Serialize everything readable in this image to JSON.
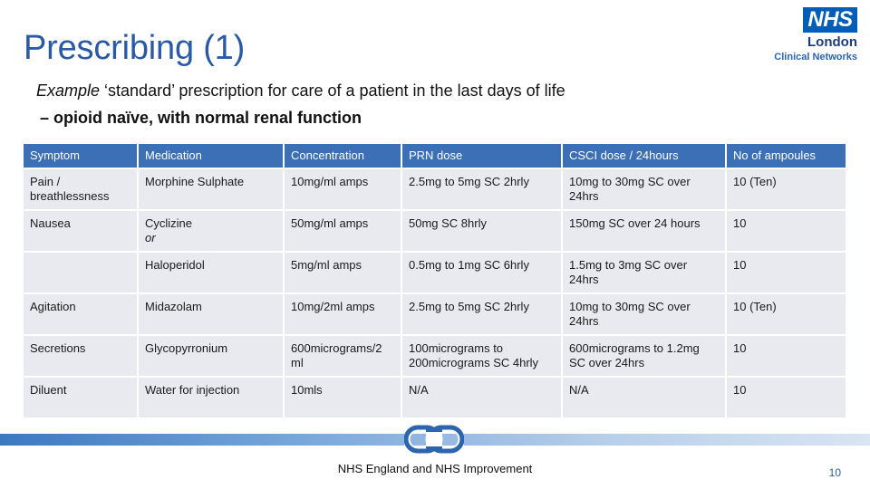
{
  "title": "Prescribing (1)",
  "logo": {
    "nhs": "NHS",
    "line1": "London",
    "line2": "Clinical Networks"
  },
  "subtitle": {
    "italic": "Example",
    "rest": " ‘standard’ prescription for care of a patient in the last days of life"
  },
  "subtitle2": "– opioid naïve, with normal renal function",
  "table": {
    "headers": [
      "Symptom",
      "Medication",
      "Concentration",
      "PRN dose",
      "CSCI dose / 24hours",
      "No of ampoules"
    ],
    "rows": [
      {
        "symptom": "Pain / breathlessness",
        "medication": "Morphine Sulphate",
        "medication_or": "",
        "concentration": "10mg/ml amps",
        "prn": "2.5mg to 5mg SC 2hrly",
        "csci": "10mg to 30mg SC over 24hrs",
        "ampoules": "10 (Ten)"
      },
      {
        "symptom": "Nausea",
        "medication": "Cyclizine",
        "medication_or": "or",
        "concentration": "50mg/ml amps",
        "prn": "50mg SC 8hrly",
        "csci": "150mg SC over 24 hours",
        "ampoules": "10"
      },
      {
        "symptom": "",
        "medication": "Haloperidol",
        "medication_or": "",
        "concentration": "5mg/ml amps",
        "prn": "0.5mg to 1mg SC 6hrly",
        "csci": "1.5mg to 3mg SC over 24hrs",
        "ampoules": "10"
      },
      {
        "symptom": "Agitation",
        "medication": "Midazolam",
        "medication_or": "",
        "concentration": "10mg/2ml amps",
        "prn": "2.5mg to 5mg SC 2hrly",
        "csci": "10mg to 30mg SC over 24hrs",
        "ampoules": "10 (Ten)"
      },
      {
        "symptom": "Secretions",
        "medication": "Glycopyrronium",
        "medication_or": "",
        "concentration": "600micrograms/2 ml",
        "prn": "100micrograms to 200micrograms SC 4hrly",
        "csci": "600micrograms to 1.2mg SC over 24hrs",
        "ampoules": "10"
      },
      {
        "symptom": "Diluent",
        "medication": "Water for injection",
        "medication_or": "",
        "concentration": "10mls",
        "prn": "N/A",
        "csci": "N/A",
        "ampoules": "10"
      }
    ]
  },
  "footer": "NHS England and NHS Improvement",
  "page_number": "10",
  "colors": {
    "title": "#2a5aa6",
    "header_bg": "#3b6fb6",
    "cell_bg": "#e8eaf0",
    "nhs_blue": "#005eb8"
  },
  "icons": {
    "chain": "chain-link-icon"
  }
}
